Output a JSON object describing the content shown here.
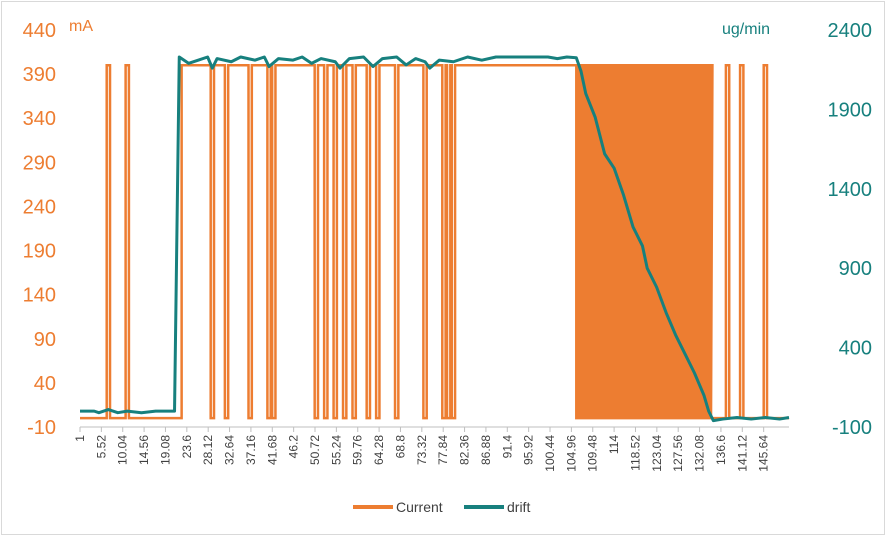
{
  "chart_data": {
    "type": "line",
    "y_left": {
      "unit": "mA",
      "ticks": [
        "440",
        "390",
        "340",
        "290",
        "240",
        "190",
        "140",
        "90",
        "40",
        "-10"
      ],
      "range": [
        -10,
        440
      ],
      "color": "#ed7d31"
    },
    "y_right": {
      "unit": "ug/min",
      "ticks": [
        "2400",
        "1900",
        "1400",
        "900",
        "400",
        "-100"
      ],
      "range": [
        -100,
        2400
      ],
      "color": "#17807e"
    },
    "x": {
      "range": [
        1,
        151
      ],
      "ticks": [
        "1",
        "5.52",
        "10.04",
        "14.56",
        "19.08",
        "23.6",
        "28.12",
        "32.64",
        "37.16",
        "41.68",
        "46.2",
        "50.72",
        "55.24",
        "59.76",
        "64.28",
        "68.8",
        "73.32",
        "77.84",
        "82.36",
        "86.88",
        "91.4",
        "95.92",
        "100.44",
        "104.96",
        "109.48",
        "114",
        "118.52",
        "123.04",
        "127.56",
        "132.08",
        "136.6",
        "141.12",
        "145.64"
      ]
    },
    "gridlines": false,
    "legend_position": "bottom",
    "series": [
      {
        "name": "Current",
        "axis": "left",
        "color": "#ed7d31",
        "low": 0,
        "high": 400,
        "spikes": [
          7,
          11,
          29,
          32,
          37,
          41,
          42,
          51,
          53,
          55,
          57,
          59,
          62,
          64,
          68,
          74,
          78,
          79,
          80
        ],
        "plateau_start": 22.5,
        "plateau_end": 106,
        "oscillation_start": 106,
        "oscillation_end": 134.5,
        "oscillation_period": 0.8,
        "tail_spikes": [
          138,
          141,
          146
        ]
      },
      {
        "name": "drift",
        "axis": "right",
        "color": "#17807e",
        "points": [
          [
            1,
            0
          ],
          [
            4,
            0
          ],
          [
            5,
            -10
          ],
          [
            7,
            10
          ],
          [
            9,
            -10
          ],
          [
            11,
            0
          ],
          [
            14,
            -10
          ],
          [
            17,
            0
          ],
          [
            20,
            0
          ],
          [
            21,
            0
          ],
          [
            22,
            2230
          ],
          [
            24,
            2190
          ],
          [
            26,
            2210
          ],
          [
            28,
            2230
          ],
          [
            29,
            2160
          ],
          [
            30,
            2220
          ],
          [
            33,
            2200
          ],
          [
            35,
            2230
          ],
          [
            38,
            2210
          ],
          [
            40,
            2230
          ],
          [
            41,
            2170
          ],
          [
            43,
            2220
          ],
          [
            46,
            2210
          ],
          [
            48,
            2230
          ],
          [
            50,
            2190
          ],
          [
            52,
            2220
          ],
          [
            55,
            2200
          ],
          [
            56,
            2160
          ],
          [
            58,
            2220
          ],
          [
            61,
            2230
          ],
          [
            63,
            2170
          ],
          [
            65,
            2220
          ],
          [
            68,
            2230
          ],
          [
            70,
            2180
          ],
          [
            72,
            2220
          ],
          [
            74,
            2200
          ],
          [
            75,
            2160
          ],
          [
            77,
            2210
          ],
          [
            80,
            2200
          ],
          [
            83,
            2230
          ],
          [
            86,
            2210
          ],
          [
            89,
            2230
          ],
          [
            92,
            2230
          ],
          [
            95,
            2230
          ],
          [
            97,
            2230
          ],
          [
            100,
            2230
          ],
          [
            102,
            2220
          ],
          [
            104,
            2230
          ],
          [
            106,
            2225
          ],
          [
            107,
            2140
          ],
          [
            108,
            2000
          ],
          [
            110,
            1850
          ],
          [
            112,
            1620
          ],
          [
            114,
            1530
          ],
          [
            116,
            1360
          ],
          [
            118,
            1160
          ],
          [
            120,
            1040
          ],
          [
            121,
            900
          ],
          [
            123,
            780
          ],
          [
            125,
            620
          ],
          [
            127,
            480
          ],
          [
            129,
            360
          ],
          [
            131,
            240
          ],
          [
            133,
            100
          ],
          [
            134,
            0
          ],
          [
            135,
            -60
          ],
          [
            137,
            -50
          ],
          [
            140,
            -40
          ],
          [
            143,
            -50
          ],
          [
            146,
            -40
          ],
          [
            149,
            -50
          ],
          [
            151,
            -40
          ]
        ]
      }
    ]
  }
}
